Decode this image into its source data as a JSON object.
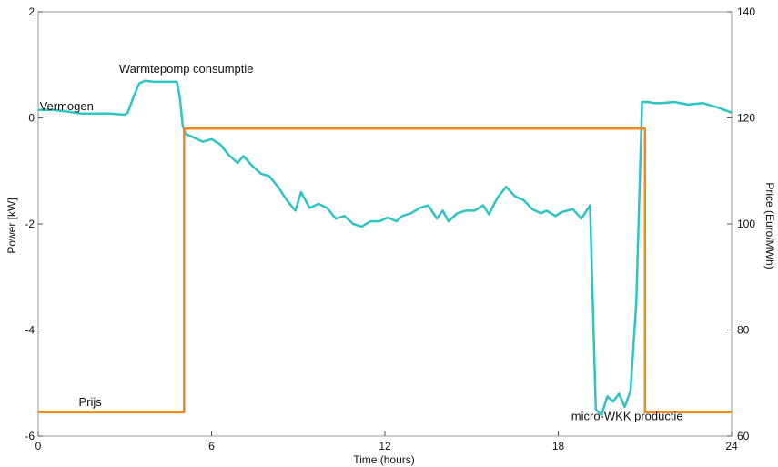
{
  "chart_data": {
    "type": "line",
    "xlabel": "Time (hours)",
    "ylabel": "Power [kW]",
    "y2label": "Price (Euro/MWh)",
    "xlim": [
      0,
      24
    ],
    "ylim": [
      -6,
      2
    ],
    "y2lim": [
      60,
      140
    ],
    "x_ticks": [
      0,
      6,
      12,
      18,
      24
    ],
    "y_ticks": [
      -6,
      -4,
      -2,
      0,
      2
    ],
    "y2_ticks": [
      60,
      80,
      100,
      120,
      140
    ],
    "grid": false,
    "series": [
      {
        "axis": "left",
        "color": "#2ec4c4",
        "x": [
          0,
          0.5,
          1,
          1.5,
          2,
          2.5,
          3,
          3.1,
          3.3,
          3.5,
          3.7,
          4,
          4.5,
          4.8,
          4.9,
          5,
          5.1,
          5.3,
          5.7,
          6,
          6.3,
          6.6,
          6.9,
          7.1,
          7.4,
          7.7,
          8,
          8.3,
          8.6,
          8.9,
          9.1,
          9.4,
          9.7,
          10,
          10.3,
          10.6,
          10.9,
          11.2,
          11.5,
          11.8,
          12.1,
          12.4,
          12.6,
          12.9,
          13.2,
          13.5,
          13.8,
          14,
          14.2,
          14.5,
          14.8,
          15.1,
          15.4,
          15.6,
          15.9,
          16.2,
          16.5,
          16.8,
          17.1,
          17.4,
          17.6,
          17.9,
          18.1,
          18.5,
          18.8,
          19.1,
          19.3,
          19.5,
          19.7,
          19.9,
          20.1,
          20.3,
          20.5,
          20.7,
          20.9,
          21,
          21.1,
          21.3,
          21.6,
          22,
          22.5,
          23,
          23.5,
          24
        ],
        "values": [
          0.15,
          0.15,
          0.12,
          0.08,
          0.08,
          0.08,
          0.06,
          0.1,
          0.4,
          0.65,
          0.7,
          0.68,
          0.68,
          0.68,
          0.4,
          -0.15,
          -0.3,
          -0.35,
          -0.45,
          -0.4,
          -0.5,
          -0.7,
          -0.85,
          -0.72,
          -0.9,
          -1.05,
          -1.1,
          -1.3,
          -1.55,
          -1.75,
          -1.4,
          -1.7,
          -1.62,
          -1.7,
          -1.9,
          -1.85,
          -2.0,
          -2.05,
          -1.95,
          -1.95,
          -1.88,
          -1.95,
          -1.85,
          -1.8,
          -1.7,
          -1.65,
          -1.9,
          -1.75,
          -1.95,
          -1.8,
          -1.75,
          -1.75,
          -1.65,
          -1.82,
          -1.5,
          -1.3,
          -1.48,
          -1.55,
          -1.72,
          -1.8,
          -1.75,
          -1.85,
          -1.78,
          -1.72,
          -1.9,
          -1.65,
          -5.5,
          -5.6,
          -5.25,
          -5.35,
          -5.2,
          -5.45,
          -5.15,
          -3.5,
          0.3,
          0.3,
          0.3,
          0.28,
          0.28,
          0.3,
          0.25,
          0.28,
          0.2,
          0.1
        ]
      },
      {
        "axis": "right",
        "color": "#f08a1c",
        "x": [
          0,
          5.05,
          5.05,
          21.0,
          21.0,
          24
        ],
        "values": [
          64.5,
          64.5,
          118,
          118,
          64.5,
          64.5
        ]
      }
    ],
    "annotations": [
      {
        "text": "Vermogen",
        "x": 0.05,
        "y": 0.15
      },
      {
        "text": "Warmtepomp consumptie",
        "x": 2.8,
        "y": 0.85
      },
      {
        "text": "Prijs",
        "x": 1.4,
        "y": -5.43
      },
      {
        "text": "micro-WKK productie",
        "x": 18.45,
        "y": -5.7
      }
    ]
  }
}
